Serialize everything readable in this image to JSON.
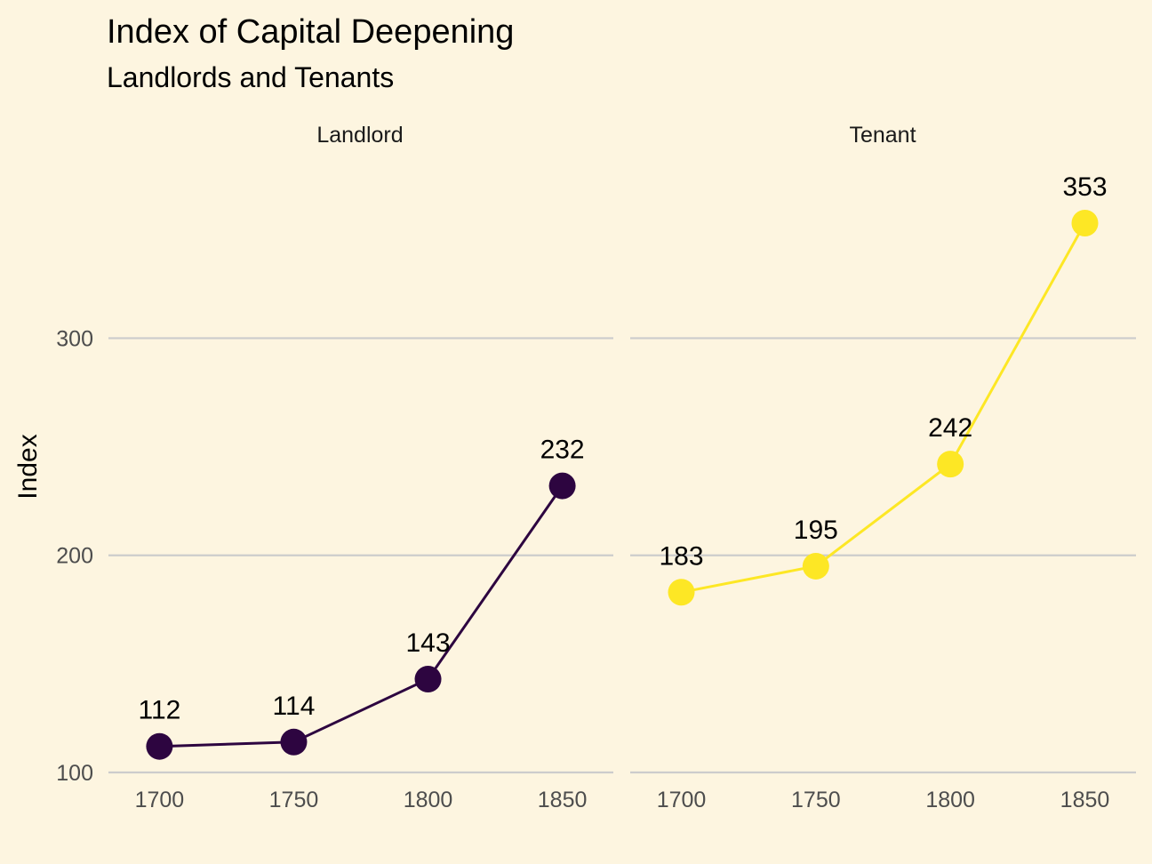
{
  "chart_data": {
    "type": "line",
    "title": "Index of Capital Deepening",
    "subtitle": "Landlords and Tenants",
    "xlabel": "",
    "ylabel": "Index",
    "x": [
      1700,
      1750,
      1800,
      1850
    ],
    "x_ticks": [
      "1700",
      "1750",
      "1800",
      "1850"
    ],
    "y_ticks": [
      100,
      200,
      300
    ],
    "y_tick_labels": [
      "100",
      "200",
      "300"
    ],
    "xlim": [
      1681,
      1869
    ],
    "ylim": [
      100,
      353
    ],
    "grid": "horizontal major only",
    "legend": "none",
    "facets": [
      {
        "name": "Landlord",
        "color": "#2D0540",
        "values": [
          112,
          114,
          143,
          232
        ],
        "labels": [
          "112",
          "114",
          "143",
          "232"
        ]
      },
      {
        "name": "Tenant",
        "color": "#FDE725",
        "values": [
          183,
          195,
          242,
          353
        ],
        "labels": [
          "183",
          "195",
          "242",
          "353"
        ]
      }
    ]
  }
}
